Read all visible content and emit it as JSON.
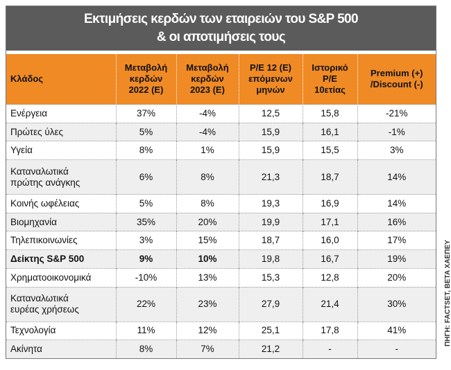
{
  "title": "Εκτιμήσεις κερδών των εταιρειών του S&P 500\n& οι αποτιμήσεις τους",
  "table": {
    "headers": [
      "Κλάδος",
      "Μεταβολή\nκερδών\n2022 (Ε)",
      "Μεταβολή\nκερδών\n2023 (Ε)",
      "P/E 12 (Ε)\nεπόμενων\nμηνών",
      "Ιστορικό\nP/E\n10ετίας",
      "Premium (+)\n/Discount (-)"
    ],
    "rows": [
      {
        "cells": [
          "Ενέργεια",
          "37%",
          "-4%",
          "12,5",
          "15,8",
          "-21%"
        ]
      },
      {
        "cells": [
          "Πρώτες ύλες",
          "5%",
          "-4%",
          "15,9",
          "16,1",
          "-1%"
        ]
      },
      {
        "cells": [
          "Υγεία",
          "8%",
          "1%",
          "15,9",
          "15,5",
          "3%"
        ]
      },
      {
        "cells": [
          "Καταναλωτικά\nπρώτης ανάγκης",
          "6%",
          "8%",
          "21,3",
          "18,7",
          "14%"
        ]
      },
      {
        "cells": [
          "Κοινής ωφέλειας",
          "5%",
          "8%",
          "19,3",
          "16,9",
          "14%"
        ]
      },
      {
        "cells": [
          "Βιομηχανία",
          "35%",
          "20%",
          "19,9",
          "17,1",
          "16%"
        ]
      },
      {
        "cells": [
          "Τηλεπικοινωνίες",
          "3%",
          "15%",
          "18,7",
          "16,0",
          "17%"
        ]
      },
      {
        "cells": [
          "Δείκτης S&P 500",
          "9%",
          "10%",
          "19,8",
          "16,7",
          "19%"
        ],
        "emphasis": true
      },
      {
        "cells": [
          "Χρηματοοικονομικά",
          "-10%",
          "13%",
          "15,3",
          "12,8",
          "20%"
        ]
      },
      {
        "cells": [
          "Καταναλωτικά\nευρέας χρήσεως",
          "22%",
          "23%",
          "27,9",
          "21,4",
          "30%"
        ]
      },
      {
        "cells": [
          "Τεχνολογία",
          "11%",
          "12%",
          "25,1",
          "17,8",
          "41%"
        ]
      },
      {
        "cells": [
          "Ακίνητα",
          "8%",
          "7%",
          "21,2",
          "-",
          "-"
        ]
      }
    ]
  },
  "source": "ΠΗΓΗ: FACTSET, BETA ΧΑΕΠΕΥ"
}
